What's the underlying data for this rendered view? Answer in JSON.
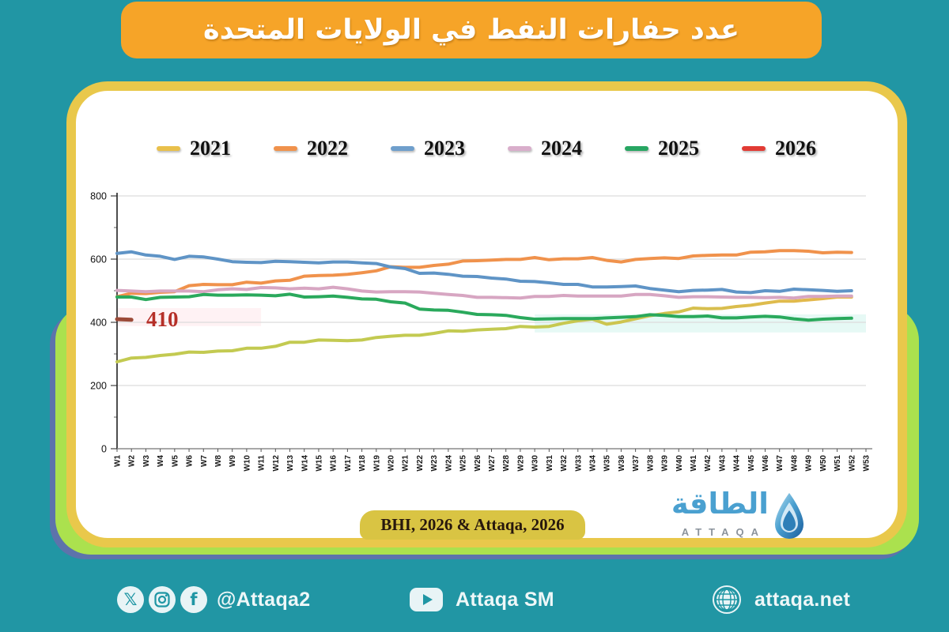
{
  "title": {
    "text": "عدد حفارات النفط في الولايات المتحدة"
  },
  "legend": {
    "items": [
      {
        "label": "2021",
        "color": "#e9c04b"
      },
      {
        "label": "2022",
        "color": "#f0924c"
      },
      {
        "label": "2023",
        "color": "#6f9fcc"
      },
      {
        "label": "2024",
        "color": "#d9aecb"
      },
      {
        "label": "2025",
        "color": "#27a662"
      },
      {
        "label": "2026",
        "color": "#e23b34"
      }
    ]
  },
  "chart_data": {
    "type": "line",
    "title": "US oil rig count by week",
    "xlabel": "",
    "ylabel": "",
    "ylim": [
      0,
      800
    ],
    "yticks": [
      0,
      200,
      400,
      600,
      800
    ],
    "grid": true,
    "legend_position": "top",
    "x_labels": [
      "W1",
      "W2",
      "W3",
      "W4",
      "W5",
      "W6",
      "W7",
      "W8",
      "W9",
      "W10",
      "W11",
      "W12",
      "W13",
      "W14",
      "W15",
      "W16",
      "W17",
      "W18",
      "W19",
      "W20",
      "W21",
      "W22",
      "W23",
      "W24",
      "W25",
      "W26",
      "W27",
      "W28",
      "W29",
      "W30",
      "W31",
      "W32",
      "W33",
      "W34",
      "W35",
      "W36",
      "W37",
      "W38",
      "W39",
      "W40",
      "W41",
      "W42",
      "W43",
      "W44",
      "W45",
      "W46",
      "W47",
      "W48",
      "W49",
      "W50",
      "W51",
      "W52",
      "W53"
    ],
    "series": [
      {
        "name": "2021",
        "color": "#c3ca51",
        "color_end": "#e9b54b",
        "values": [
          275,
          287,
          289,
          295,
          299,
          306,
          305,
          309,
          310,
          318,
          318,
          324,
          337,
          337,
          344,
          343,
          342,
          344,
          352,
          356,
          359,
          359,
          365,
          373,
          372,
          376,
          378,
          380,
          387,
          385,
          387,
          397,
          405,
          410,
          394,
          401,
          411,
          421,
          428,
          433,
          445,
          443,
          444,
          450,
          454,
          461,
          467,
          467,
          471,
          475,
          480,
          480
        ]
      },
      {
        "name": "2022",
        "color": "#f0924c",
        "values": [
          481,
          492,
          491,
          495,
          497,
          516,
          520,
          519,
          519,
          527,
          524,
          531,
          533,
          546,
          548,
          549,
          552,
          557,
          563,
          576,
          574,
          574,
          580,
          584,
          594,
          595,
          597,
          599,
          599,
          605,
          598,
          601,
          601,
          605,
          596,
          591,
          599,
          602,
          604,
          602,
          610,
          612,
          613,
          613,
          622,
          623,
          627,
          627,
          625,
          620,
          622,
          621
        ]
      },
      {
        "name": "2023",
        "color": "#5f94c6",
        "values": [
          618,
          623,
          613,
          609,
          599,
          609,
          607,
          600,
          592,
          590,
          589,
          593,
          592,
          590,
          588,
          591,
          591,
          588,
          586,
          575,
          570,
          555,
          556,
          552,
          546,
          545,
          540,
          537,
          530,
          529,
          525,
          520,
          520,
          512,
          512,
          513,
          515,
          507,
          502,
          497,
          501,
          502,
          504,
          496,
          494,
          500,
          498,
          505,
          503,
          501,
          498,
          500
        ]
      },
      {
        "name": "2024",
        "color": "#d7a6c2",
        "values": [
          501,
          499,
          497,
          499,
          499,
          499,
          497,
          503,
          506,
          504,
          510,
          509,
          506,
          508,
          506,
          511,
          506,
          499,
          496,
          497,
          497,
          496,
          492,
          488,
          485,
          479,
          479,
          478,
          477,
          482,
          482,
          485,
          483,
          483,
          483,
          483,
          488,
          488,
          484,
          479,
          481,
          481,
          480,
          479,
          479,
          478,
          479,
          477,
          482,
          482,
          483,
          483
        ]
      },
      {
        "name": "2025",
        "color": "#2aa95c",
        "values": [
          480,
          480,
          472,
          479,
          480,
          481,
          488,
          486,
          486,
          487,
          486,
          484,
          489,
          480,
          481,
          483,
          479,
          474,
          473,
          465,
          461,
          442,
          439,
          438,
          432,
          425,
          424,
          422,
          415,
          410,
          411,
          412,
          412,
          412,
          414,
          416,
          418,
          424,
          422,
          418,
          418,
          420,
          414,
          414,
          417,
          419,
          417,
          411,
          407,
          410,
          412,
          413
        ]
      },
      {
        "name": "2026",
        "color": "#9c4a38",
        "values": [
          410,
          408
        ]
      }
    ],
    "annotation": {
      "text": "410",
      "value": 410,
      "color": "#b52f28"
    },
    "highlight_bands": [
      {
        "from_week": 30,
        "to_week": 53,
        "top_value": 425,
        "bottom_value": 368,
        "color": "#d5f5ef",
        "opacity": 0.6
      },
      {
        "from_week": 1,
        "to_week": 11,
        "top_value": 445,
        "bottom_value": 388,
        "color": "#ffd9e0",
        "opacity": 0.35
      }
    ]
  },
  "source": {
    "text": "BHI, 2026 & Attaqa, 2026"
  },
  "logo": {
    "arabic": "الطاقة",
    "latin": "ATTAQA"
  },
  "footer": {
    "left": {
      "handle": "@Attaqa2",
      "icons": [
        "x-icon",
        "instagram-icon",
        "facebook-icon"
      ]
    },
    "middle": {
      "label": "Attaqa SM",
      "icon": "youtube-icon"
    },
    "right": {
      "label": "attaqa.net",
      "icon": "globe-icon"
    }
  }
}
